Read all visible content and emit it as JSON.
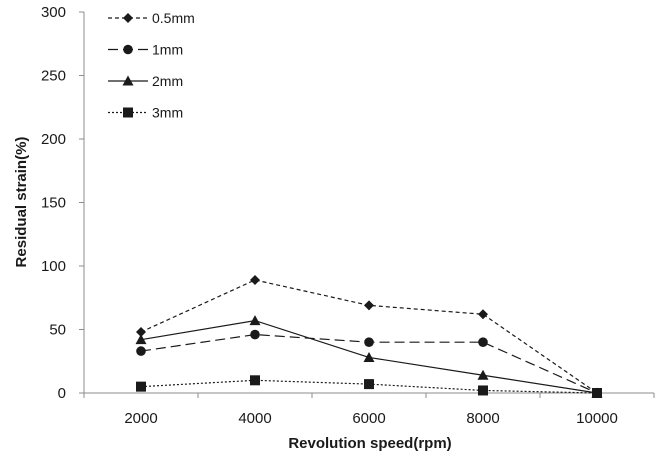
{
  "chart_data": {
    "type": "line",
    "title": "",
    "xlabel": "Revolution speed(rpm)",
    "ylabel": "Residual strain(%)",
    "categories": [
      "2000",
      "4000",
      "6000",
      "8000",
      "10000"
    ],
    "ylim": [
      0,
      300
    ],
    "yticks": [
      "0",
      "50",
      "100",
      "150",
      "200",
      "250",
      "300"
    ],
    "grid": false,
    "legend_position": "top-left",
    "series": [
      {
        "name": "0.5mm",
        "marker": "diamond",
        "dash": "short-dash",
        "color": "#1a1a1a",
        "values": [
          48,
          89,
          69,
          62,
          0
        ]
      },
      {
        "name": "1mm",
        "marker": "circle",
        "dash": "long-dash",
        "color": "#1a1a1a",
        "values": [
          33,
          46,
          40,
          40,
          0
        ]
      },
      {
        "name": "2mm",
        "marker": "triangle",
        "dash": "solid",
        "color": "#1a1a1a",
        "values": [
          42,
          57,
          28,
          14,
          0
        ]
      },
      {
        "name": "3mm",
        "marker": "square",
        "dash": "dot",
        "color": "#1a1a1a",
        "values": [
          5,
          10,
          7,
          2,
          0
        ]
      }
    ]
  }
}
